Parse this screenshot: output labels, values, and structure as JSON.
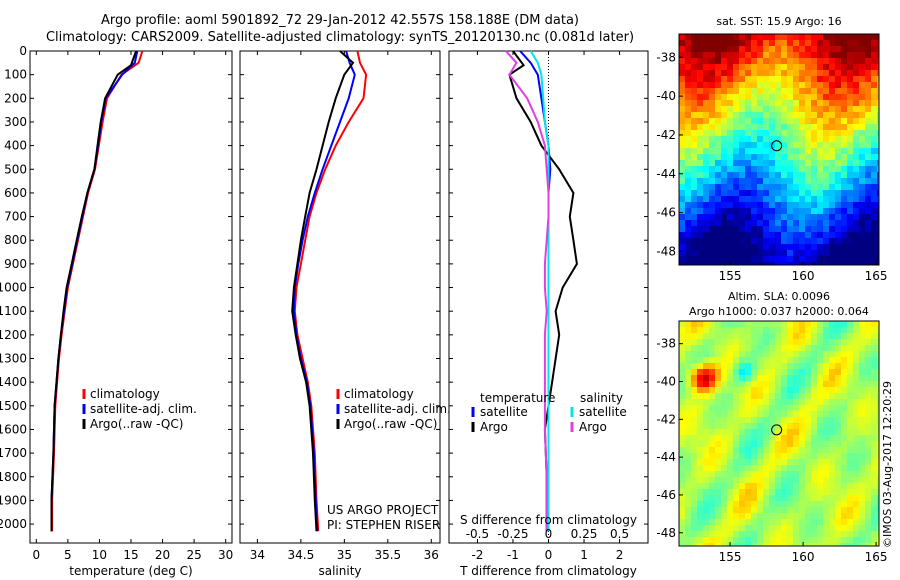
{
  "header": {
    "title_line1": "Argo profile: aoml 5901892_72 29-Jan-2012 42.557S 158.188E (DM data)",
    "title_line2": "Climatology: CARS2009. Satellite-adjusted climatology: synTS_20120130.nc (0.081d later)"
  },
  "colors": {
    "climatology": "#ff0000",
    "satellite": "#0000ff",
    "argo": "#000000",
    "salinity_satellite": "#00e5ee",
    "salinity_argo": "#e040e0"
  },
  "chart_data": [
    {
      "type": "line",
      "xlabel": "temperature (deg C)",
      "ylabel": "",
      "xlim": [
        -1,
        31
      ],
      "ylim": [
        2080,
        0
      ],
      "y_reversed": true,
      "xticks": [
        0,
        5,
        10,
        15,
        20,
        25,
        30
      ],
      "yticks": [
        0,
        100,
        200,
        300,
        400,
        500,
        600,
        700,
        800,
        900,
        1000,
        1100,
        1200,
        1300,
        1400,
        1500,
        1600,
        1700,
        1800,
        1900,
        2000
      ],
      "legend": {
        "placement": "lower-middle",
        "entries": [
          "climatology",
          "satellite-adj. clim.",
          "Argo(..raw -QC)"
        ]
      },
      "series": [
        {
          "name": "climatology",
          "color": "#ff0000",
          "x": [
            16.8,
            16.2,
            13.5,
            11.2,
            10.5,
            9.9,
            9.3,
            8.2,
            7.4,
            6.6,
            5.8,
            5.0,
            4.5,
            4.0,
            3.6,
            3.3,
            3.0,
            2.8,
            2.5,
            2.5
          ],
          "y": [
            0,
            50,
            100,
            200,
            300,
            400,
            500,
            600,
            700,
            800,
            900,
            1000,
            1100,
            1200,
            1300,
            1400,
            1500,
            1700,
            1900,
            2030
          ]
        },
        {
          "name": "satellite-adj. clim.",
          "color": "#0000ff",
          "x": [
            16.0,
            15.6,
            13.6,
            11.0,
            10.3,
            9.8,
            9.2,
            8.1,
            7.3,
            6.5,
            5.7,
            4.9,
            4.4,
            3.9,
            3.5,
            3.2,
            2.9,
            2.7,
            2.4,
            2.4
          ],
          "y": [
            0,
            50,
            100,
            200,
            300,
            400,
            500,
            600,
            700,
            800,
            900,
            1000,
            1100,
            1200,
            1300,
            1400,
            1500,
            1700,
            1900,
            2030
          ]
        },
        {
          "name": "Argo(..raw -QC)",
          "color": "#000000",
          "x": [
            15.8,
            15.0,
            12.9,
            10.9,
            10.2,
            9.7,
            9.2,
            8.1,
            7.2,
            6.4,
            5.6,
            4.8,
            4.3,
            3.9,
            3.5,
            3.2,
            2.9,
            2.7,
            2.4,
            2.4
          ],
          "y": [
            0,
            60,
            100,
            200,
            300,
            400,
            500,
            600,
            700,
            800,
            900,
            1000,
            1100,
            1200,
            1300,
            1400,
            1500,
            1700,
            1900,
            2030
          ]
        }
      ]
    },
    {
      "type": "line",
      "xlabel": "salinity",
      "xlim": [
        33.8,
        36.1
      ],
      "ylim": [
        2080,
        0
      ],
      "y_reversed": true,
      "xticks": [
        34,
        34.5,
        35,
        35.5,
        36
      ],
      "legend": {
        "placement": "lower-right",
        "entries": [
          "climatology",
          "satellite-adj. clim.",
          "Argo(..raw -QC)"
        ]
      },
      "annotation": [
        "US ARGO PROJECT",
        "PI: STEPHEN RISER"
      ],
      "series": [
        {
          "name": "climatology",
          "color": "#ff0000",
          "x": [
            35.15,
            35.18,
            35.25,
            35.22,
            35.05,
            34.9,
            34.78,
            34.68,
            34.6,
            34.55,
            34.5,
            34.45,
            34.43,
            34.46,
            34.52,
            34.58,
            34.62,
            34.66,
            34.68,
            34.7
          ],
          "y": [
            0,
            50,
            100,
            200,
            300,
            400,
            500,
            600,
            700,
            800,
            900,
            1000,
            1100,
            1200,
            1300,
            1400,
            1500,
            1700,
            1900,
            2030
          ]
        },
        {
          "name": "satellite-adj. clim.",
          "color": "#0000ff",
          "x": [
            35.02,
            35.06,
            35.12,
            35.05,
            34.95,
            34.85,
            34.75,
            34.66,
            34.58,
            34.52,
            34.47,
            34.43,
            34.42,
            34.45,
            34.5,
            34.57,
            34.61,
            34.65,
            34.67,
            34.69
          ],
          "y": [
            0,
            50,
            100,
            200,
            300,
            400,
            500,
            600,
            700,
            800,
            900,
            1000,
            1100,
            1200,
            1300,
            1400,
            1500,
            1700,
            1900,
            2030
          ]
        },
        {
          "name": "Argo(..raw -QC)",
          "color": "#000000",
          "x": [
            34.95,
            35.1,
            35.0,
            34.9,
            34.82,
            34.75,
            34.68,
            34.6,
            34.55,
            34.5,
            34.46,
            34.42,
            34.4,
            34.44,
            34.49,
            34.56,
            34.6,
            34.64,
            34.66,
            34.68
          ],
          "y": [
            0,
            50,
            100,
            200,
            300,
            400,
            500,
            600,
            700,
            800,
            900,
            1000,
            1100,
            1200,
            1300,
            1400,
            1500,
            1700,
            1900,
            2030
          ]
        }
      ]
    },
    {
      "type": "line",
      "xlabel": "T difference from climatology",
      "xlabel_top": "S difference from climatology",
      "xlim": [
        -2.8,
        2.8
      ],
      "ylim": [
        2080,
        0
      ],
      "y_reversed": true,
      "xticks": [
        -2,
        -1,
        0,
        1,
        2
      ],
      "xticks_top_labels": [
        "-0.5",
        "-0.25",
        "0",
        "0.25",
        "0.5"
      ],
      "xticks_top_positions": [
        -2,
        -1,
        0,
        1,
        2
      ],
      "zero_line": true,
      "legend": {
        "placement": "lower",
        "headers": [
          "temperature",
          "salinity"
        ],
        "entries": [
          "satellite",
          "Argo",
          "satellite",
          "Argo"
        ]
      },
      "series": [
        {
          "name": "satellite",
          "group": "temperature",
          "color": "#0000ff",
          "x": [
            -0.8,
            -0.5,
            -0.3,
            -0.2,
            -0.1,
            0.0,
            0.05,
            0.0,
            0.0,
            0.0,
            0.0,
            0.0,
            0.0,
            0.0,
            0.0,
            0.0,
            0.0,
            0.0
          ],
          "y": [
            0,
            50,
            100,
            200,
            300,
            400,
            500,
            600,
            700,
            800,
            900,
            1000,
            1100,
            1200,
            1400,
            1600,
            1800,
            2030
          ]
        },
        {
          "name": "Argo",
          "group": "temperature",
          "color": "#000000",
          "x": [
            -1.0,
            -0.7,
            -1.1,
            -0.9,
            -0.5,
            -0.2,
            0.3,
            0.7,
            0.6,
            0.7,
            0.8,
            0.4,
            0.2,
            0.3,
            0.1,
            -0.1,
            -0.05,
            -0.05
          ],
          "y": [
            0,
            60,
            100,
            200,
            300,
            400,
            500,
            600,
            700,
            800,
            900,
            1000,
            1100,
            1200,
            1400,
            1600,
            1800,
            2030
          ]
        },
        {
          "name": "satellite",
          "group": "salinity",
          "color": "#00e5ee",
          "x": [
            -0.5,
            -0.3,
            -0.2,
            -0.15,
            -0.1,
            0.0,
            0.0,
            0.0,
            0.0,
            0.0,
            0.0,
            0.0,
            0.0,
            0.0,
            0.0,
            0.0,
            0.0,
            0.0
          ],
          "y": [
            0,
            50,
            100,
            200,
            300,
            400,
            500,
            600,
            700,
            800,
            900,
            1000,
            1100,
            1200,
            1400,
            1600,
            1800,
            2030
          ]
        },
        {
          "name": "Argo",
          "group": "salinity",
          "color": "#e040e0",
          "x": [
            -1.2,
            -0.9,
            -1.1,
            -0.6,
            -0.3,
            -0.1,
            -0.05,
            0.0,
            0.0,
            -0.05,
            -0.1,
            -0.1,
            -0.05,
            -0.1,
            -0.1,
            -0.1,
            -0.05,
            -0.05
          ],
          "y": [
            0,
            50,
            100,
            200,
            300,
            400,
            500,
            600,
            700,
            800,
            900,
            1000,
            1100,
            1200,
            1400,
            1600,
            1800,
            2030
          ]
        }
      ]
    },
    {
      "type": "heatmap",
      "title": "sat. SST: 15.9 Argo: 16",
      "xlim": [
        151.5,
        165.2
      ],
      "ylim": [
        -48.7,
        -36.8
      ],
      "xticks": [
        155,
        160,
        165
      ],
      "yticks": [
        -38,
        -40,
        -42,
        -44,
        -46,
        -48
      ],
      "marker": {
        "x": 158.188,
        "y": -42.557
      },
      "colormap": "jet"
    },
    {
      "type": "heatmap",
      "title": "Altim. SLA: 0.0096",
      "subtitle": "Argo h1000: 0.037 h2000: 0.064",
      "xlim": [
        151.5,
        165.2
      ],
      "ylim": [
        -48.7,
        -36.8
      ],
      "xticks": [
        155,
        160,
        165
      ],
      "yticks": [
        -38,
        -40,
        -42,
        -44,
        -46,
        -48
      ],
      "marker": {
        "x": 158.188,
        "y": -42.557
      },
      "colormap": "jet"
    }
  ],
  "footer": {
    "credit": "©IMOS 03-Aug-2017 12:20:29"
  }
}
